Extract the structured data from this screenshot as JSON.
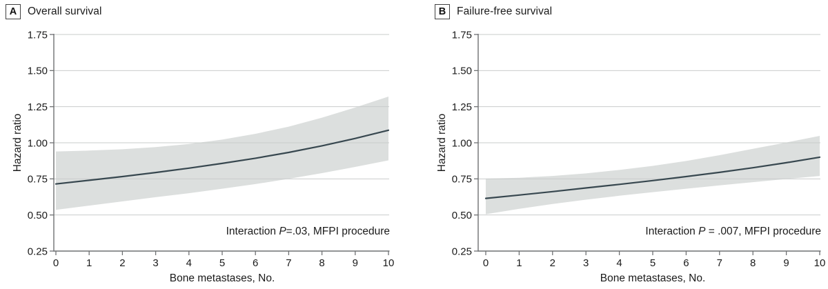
{
  "colors": {
    "line": "#37474f",
    "band": "#dcdfde",
    "grid": "#c9cccb",
    "axis": "#6e7072",
    "text": "#1a1a1a"
  },
  "chart_data": [
    {
      "type": "line",
      "panel_label": "A",
      "title": "Overall survival",
      "xlabel": "Bone metastases, No.",
      "ylabel": "Hazard ratio",
      "xlim": [
        0,
        10
      ],
      "ylim": [
        0.25,
        1.75
      ],
      "grid": true,
      "xticks": [
        0,
        1,
        2,
        3,
        4,
        5,
        6,
        7,
        8,
        9,
        10
      ],
      "xtick_labels": [
        "0",
        "1",
        "2",
        "3",
        "4",
        "5",
        "6",
        "7",
        "8",
        "9",
        "10"
      ],
      "yticks": [
        1.75,
        1.5,
        1.25,
        1.0,
        0.75,
        0.5,
        0.25
      ],
      "ytick_labels": [
        "1.75",
        "1.50",
        "1.25",
        "1.00",
        "0.75",
        "0.50",
        "0.25"
      ],
      "x": [
        0,
        1,
        2,
        3,
        4,
        5,
        6,
        7,
        8,
        9,
        10
      ],
      "series": [
        {
          "name": "Hazard ratio",
          "values": [
            0.715,
            0.74,
            0.766,
            0.794,
            0.824,
            0.857,
            0.893,
            0.933,
            0.979,
            1.03,
            1.087
          ]
        }
      ],
      "confidence_band": {
        "name": "95% CI",
        "upper": [
          0.94,
          0.946,
          0.955,
          0.97,
          0.992,
          1.022,
          1.062,
          1.112,
          1.174,
          1.244,
          1.32
        ],
        "lower": [
          0.535,
          0.565,
          0.594,
          0.623,
          0.651,
          0.682,
          0.714,
          0.75,
          0.79,
          0.833,
          0.878
        ]
      },
      "annotation": "Interaction P=.03, MFPI procedure",
      "annotation_parts": [
        "Interaction ",
        "P",
        "=.03, MFPI procedure"
      ]
    },
    {
      "type": "line",
      "panel_label": "B",
      "title": "Failure-free survival",
      "xlabel": "Bone metastases, No.",
      "ylabel": "Hazard ratio",
      "xlim": [
        0,
        10
      ],
      "ylim": [
        0.25,
        1.75
      ],
      "grid": true,
      "xticks": [
        0,
        1,
        2,
        3,
        4,
        5,
        6,
        7,
        8,
        9,
        10
      ],
      "xtick_labels": [
        "0",
        "1",
        "2",
        "3",
        "4",
        "5",
        "6",
        "7",
        "8",
        "9",
        "10"
      ],
      "yticks": [
        1.75,
        1.5,
        1.25,
        1.0,
        0.75,
        0.5,
        0.25
      ],
      "ytick_labels": [
        "1.75",
        "1.50",
        "1.25",
        "1.00",
        "0.75",
        "0.50",
        "0.25"
      ],
      "x": [
        0,
        1,
        2,
        3,
        4,
        5,
        6,
        7,
        8,
        9,
        10
      ],
      "series": [
        {
          "name": "Hazard ratio",
          "values": [
            0.615,
            0.638,
            0.662,
            0.687,
            0.712,
            0.738,
            0.766,
            0.795,
            0.827,
            0.862,
            0.9
          ]
        }
      ],
      "confidence_band": {
        "name": "95% CI",
        "upper": [
          0.752,
          0.758,
          0.77,
          0.788,
          0.812,
          0.84,
          0.874,
          0.914,
          0.958,
          1.002,
          1.048
        ],
        "lower": [
          0.505,
          0.543,
          0.576,
          0.606,
          0.633,
          0.658,
          0.682,
          0.705,
          0.727,
          0.749,
          0.77
        ]
      },
      "annotation": "Interaction P = .007, MFPI procedure",
      "annotation_parts": [
        "Interaction ",
        "P",
        " = .007, MFPI procedure"
      ]
    }
  ]
}
